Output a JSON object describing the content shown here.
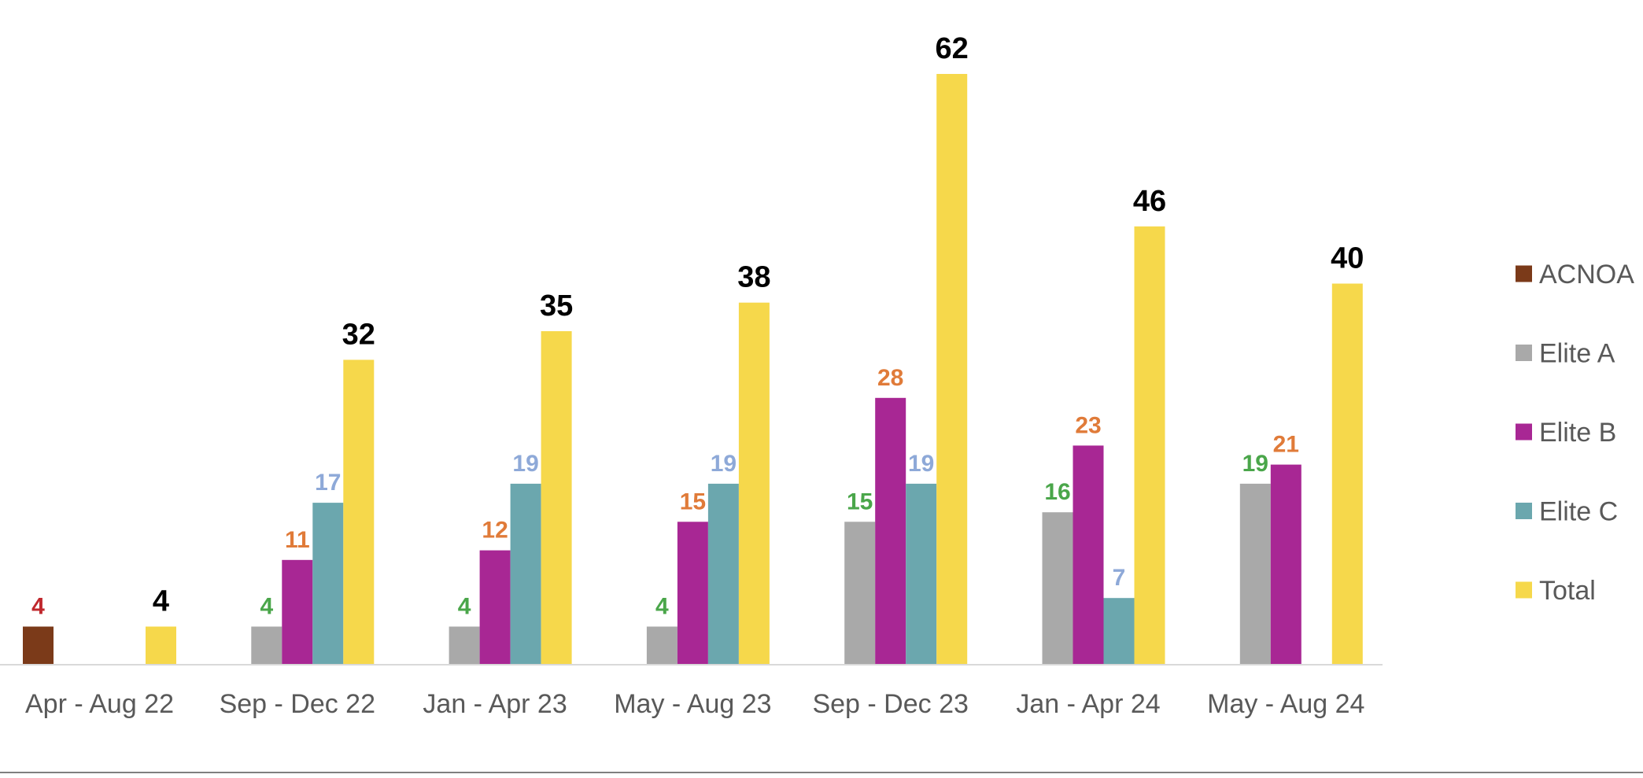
{
  "chart_data": {
    "type": "bar",
    "title": "",
    "xlabel": "",
    "ylabel": "",
    "ylim": [
      0,
      62
    ],
    "grid": false,
    "legend_position": "right",
    "categories": [
      "Apr - Aug 22",
      "Sep - Dec 22",
      "Jan - Apr 23",
      "May - Aug 23",
      "Sep - Dec 23",
      "Jan - Apr 24",
      "May - Aug 24"
    ],
    "series": [
      {
        "name": "ACNOA",
        "color": "#7b3a19",
        "label_color": "#c0282d",
        "values": [
          4,
          null,
          null,
          null,
          null,
          null,
          null
        ]
      },
      {
        "name": "Elite A",
        "color": "#a9a9a9",
        "label_color": "#4aa64a",
        "values": [
          null,
          4,
          4,
          4,
          15,
          16,
          19
        ]
      },
      {
        "name": "Elite B",
        "color": "#a82794",
        "label_color": "#e07b39",
        "values": [
          null,
          11,
          12,
          15,
          28,
          23,
          21
        ]
      },
      {
        "name": "Elite C",
        "color": "#6ba7ae",
        "label_color": "#8ea9d8",
        "values": [
          null,
          17,
          19,
          19,
          19,
          7,
          null
        ]
      },
      {
        "name": "Total",
        "color": "#f6d84b",
        "label_color": "#000000",
        "values": [
          4,
          32,
          35,
          38,
          62,
          46,
          40
        ]
      }
    ]
  }
}
